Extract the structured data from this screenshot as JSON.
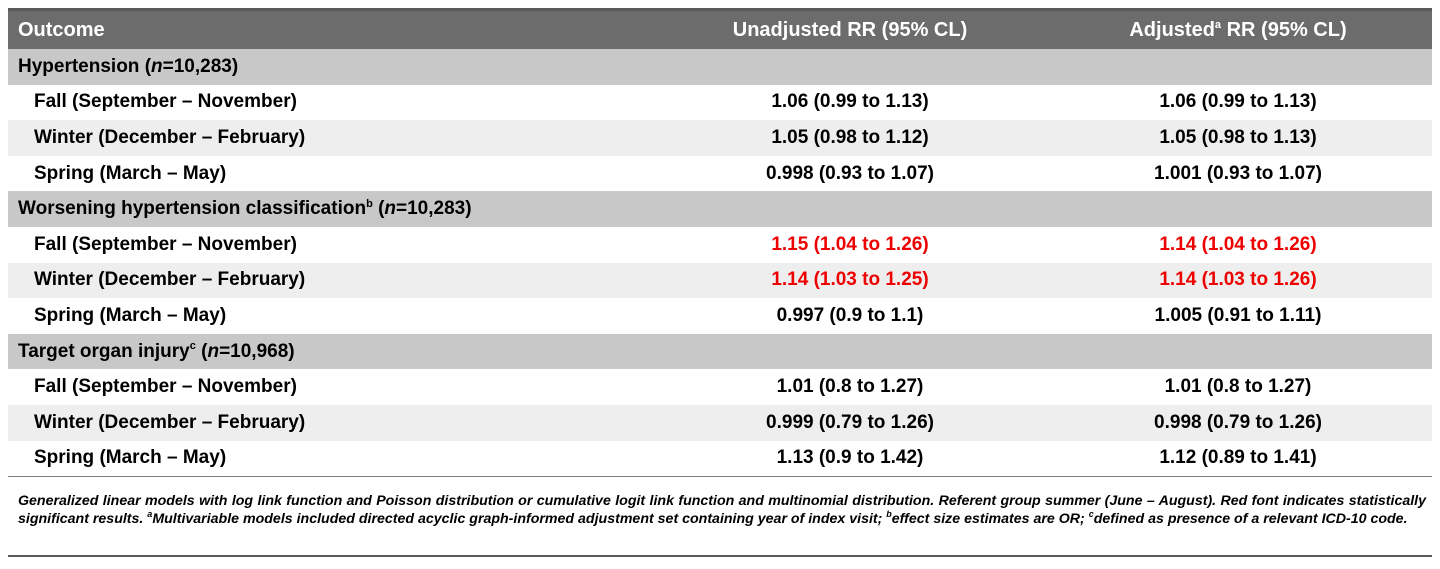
{
  "header": {
    "col1": "Outcome",
    "col2": "Unadjusted RR (95% CL)",
    "col3_pre": "Adjusted",
    "col3_sup": "a",
    "col3_post": " RR (95% CL)"
  },
  "groups": [
    {
      "title": "Hypertension (",
      "title_sup": "",
      "title_tail_pre": "",
      "n_italic": "n",
      "n_value": "=10,283)",
      "rows": [
        {
          "label": "Fall (September – November)",
          "unadj": "1.06 (0.99 to 1.13)",
          "adj": "1.06 (0.99 to 1.13)",
          "significant": false
        },
        {
          "label": "Winter (December – February)",
          "unadj": "1.05 (0.98 to 1.12)",
          "adj": "1.05 (0.98 to 1.13)",
          "significant": false
        },
        {
          "label": "Spring (March – May)",
          "unadj": "0.998 (0.93 to 1.07)",
          "adj": "1.001 (0.93 to 1.07)",
          "significant": false
        }
      ]
    },
    {
      "title": "Worsening hypertension classification",
      "title_sup": "b",
      "title_tail_pre": " (",
      "n_italic": "n",
      "n_value": "=10,283)",
      "rows": [
        {
          "label": "Fall (September – November)",
          "unadj": "1.15 (1.04 to 1.26)",
          "adj": "1.14 (1.04 to 1.26)",
          "significant": true
        },
        {
          "label": "Winter (December – February)",
          "unadj": "1.14 (1.03 to 1.25)",
          "adj": "1.14 (1.03 to 1.26)",
          "significant": true
        },
        {
          "label": "Spring (March – May)",
          "unadj": "0.997 (0.9 to 1.1)",
          "adj": "1.005 (0.91 to 1.11)",
          "significant": false
        }
      ]
    },
    {
      "title": "Target organ injury",
      "title_sup": "c",
      "title_tail_pre": " (",
      "n_italic": "n",
      "n_value": "=10,968)",
      "rows": [
        {
          "label": "Fall (September – November)",
          "unadj": "1.01 (0.8 to 1.27)",
          "adj": "1.01 (0.8 to 1.27)",
          "significant": false
        },
        {
          "label": "Winter (December – February)",
          "unadj": "0.999 (0.79 to 1.26)",
          "adj": "0.998 (0.79 to 1.26)",
          "significant": false
        },
        {
          "label": "Spring (March – May)",
          "unadj": "1.13 (0.9 to 1.42)",
          "adj": "1.12 (0.89 to 1.41)",
          "significant": false
        }
      ]
    }
  ],
  "footnote": {
    "part1": "Generalized linear models with log link function and Poisson distribution or cumulative logit link function and multinomial distribution. Referent group summer (June – August). Red font indicates statistically significant results. ",
    "sup_a": "a",
    "part_a": "Multivariable models included directed acyclic graph-informed adjustment set containing year of index visit; ",
    "sup_b": "b",
    "part_b": "effect size estimates are OR; ",
    "sup_c": "c",
    "part_c": "defined as presence of a relevant ICD-10 code."
  },
  "colors": {
    "header_bg": "#6c6c6c",
    "group_bg": "#c8c8c8",
    "alt_row_bg": "#eeeeee",
    "significant": "#ee0000"
  }
}
